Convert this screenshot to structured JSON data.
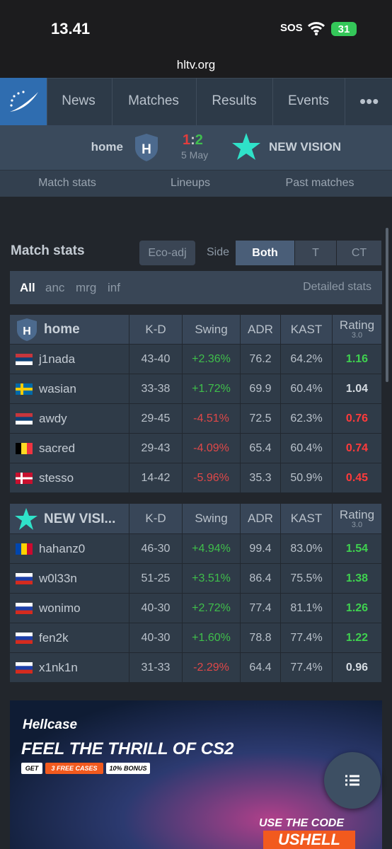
{
  "status_bar": {
    "time": "13.41",
    "sos": "SOS",
    "battery": "31"
  },
  "url": "hltv.org",
  "nav": {
    "items": [
      "News",
      "Matches",
      "Results",
      "Events"
    ]
  },
  "match": {
    "team1": "home",
    "team1_logo": "H",
    "score1": "1",
    "separator": ":",
    "score2": "2",
    "date": "5 May",
    "team2": "NEW VISION"
  },
  "tabs": [
    "Match stats",
    "Lineups",
    "Past matches"
  ],
  "stats": {
    "title": "Match stats",
    "eco": "Eco-adj",
    "side": "Side",
    "sides": [
      "Both",
      "T",
      "CT"
    ],
    "maps": [
      "All",
      "anc",
      "mrg",
      "inf"
    ],
    "detailed": "Detailed stats",
    "columns": [
      "K-D",
      "Swing",
      "ADR",
      "KAST",
      "Rating"
    ],
    "rating_version": "3.0",
    "tables": [
      {
        "team": "home",
        "logo": "H",
        "rows": [
          [
            "j1nada",
            "43-40",
            "+2.36%",
            "76.2",
            "64.2%",
            "1.16"
          ],
          [
            "wasian",
            "33-38",
            "+1.72%",
            "69.9",
            "60.4%",
            "1.04"
          ],
          [
            "awdy",
            "29-45",
            "-4.51%",
            "72.5",
            "62.3%",
            "0.76"
          ],
          [
            "sacred",
            "29-43",
            "-4.09%",
            "65.4",
            "60.4%",
            "0.74"
          ],
          [
            "stesso",
            "14-42",
            "-5.96%",
            "35.3",
            "50.9%",
            "0.45"
          ]
        ]
      },
      {
        "team": "NEW VISI...",
        "rows": [
          [
            "hahanz0",
            "46-30",
            "+4.94%",
            "99.4",
            "83.0%",
            "1.54"
          ],
          [
            "w0l33n",
            "51-25",
            "+3.51%",
            "86.4",
            "75.5%",
            "1.38"
          ],
          [
            "wonimo",
            "40-30",
            "+2.72%",
            "77.4",
            "81.1%",
            "1.26"
          ],
          [
            "fen2k",
            "40-30",
            "+1.60%",
            "78.8",
            "77.4%",
            "1.22"
          ],
          [
            "x1nk1n",
            "31-33",
            "-2.29%",
            "64.4",
            "77.4%",
            "0.96"
          ]
        ]
      }
    ]
  },
  "ad": {
    "brand": "Hellcase",
    "headline": "FEEL THE THRILL OF CS2",
    "badges": [
      "GET",
      "3 FREE CASES",
      "10% BONUS"
    ],
    "code_label": "USE THE CODE",
    "code": "USHELL"
  }
}
